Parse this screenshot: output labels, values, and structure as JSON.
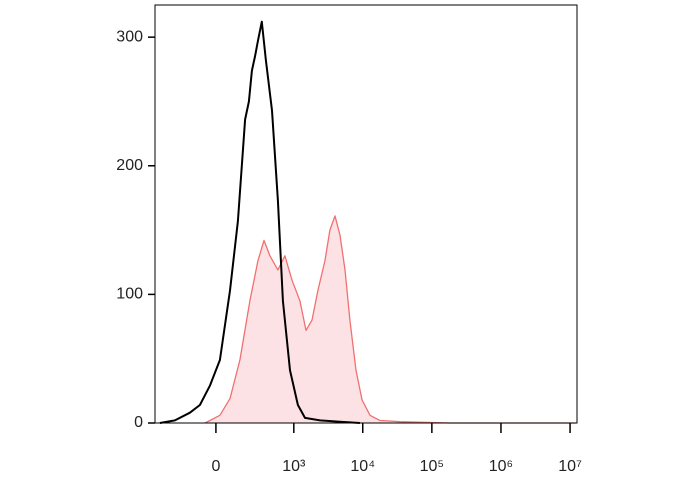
{
  "chart_data": {
    "type": "histogram-overlay",
    "xscale": "asinh",
    "xlim": [
      -561,
      12600000
    ],
    "ylim": [
      0,
      325
    ],
    "xticks": [
      0,
      {
        "value": 1000,
        "label": "10³"
      },
      {
        "value": 10000,
        "label": "10⁴"
      },
      {
        "value": 100000,
        "label": "10⁵"
      },
      {
        "value": 1000000,
        "label": "10⁶"
      },
      {
        "value": 10000000,
        "label": "10⁷"
      }
    ],
    "yticks": [
      0,
      100,
      200,
      300
    ],
    "series": [
      {
        "color": "#f07070",
        "fill": "#fde2e5",
        "x": [
          -56,
          20,
          73,
          133,
          209,
          285,
          357,
          441,
          582,
          740,
          939,
          1229,
          1503,
          1838,
          2244,
          2834,
          3348,
          3962,
          4680,
          5526,
          6520,
          7980,
          9750,
          12720,
          17700,
          34500,
          183000,
          12000000
        ],
        "values": [
          0,
          6,
          19,
          49,
          95,
          126,
          142,
          130,
          119,
          130,
          111,
          95,
          72,
          80,
          103,
          126,
          150,
          161,
          146,
          119,
          80,
          41,
          18,
          6,
          2,
          1,
          0,
          0
        ]
      },
      {
        "color": "#000000",
        "x": [
          -474,
          -275,
          -147,
          -84,
          -30,
          20,
          73,
          120,
          170,
          200,
          226,
          255,
          285,
          330,
          383,
          474,
          582,
          692,
          878,
          1149,
          1454,
          2400,
          4680,
          9100
        ],
        "values": [
          0,
          2,
          8,
          14,
          29,
          49,
          103,
          157,
          236,
          250,
          274,
          285,
          297,
          312,
          282,
          243,
          173,
          95,
          41,
          14,
          4,
          2,
          1,
          0
        ]
      }
    ]
  }
}
